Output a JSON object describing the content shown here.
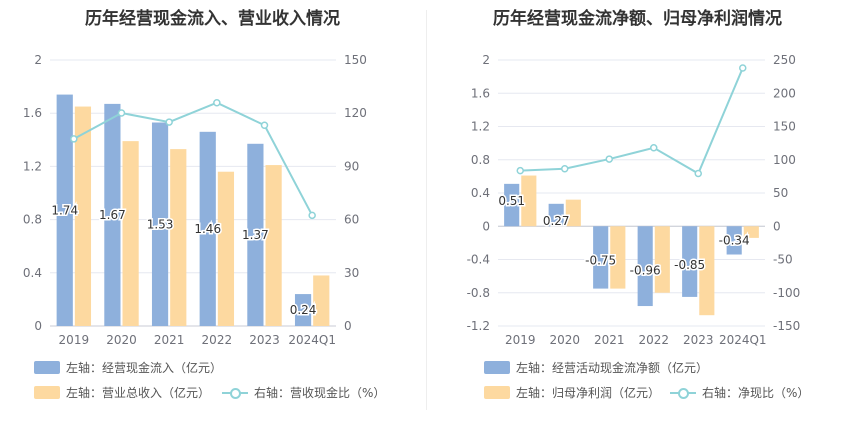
{
  "chart_data": [
    {
      "type": "bar",
      "title": "历年经营现金流入、营业收入情况",
      "categories": [
        "2019",
        "2020",
        "2021",
        "2022",
        "2023",
        "2024Q1"
      ],
      "left_axis": {
        "min": 0,
        "max": 2,
        "ticks": [
          "0",
          "0.4",
          "0.8",
          "1.2",
          "1.6",
          "2"
        ],
        "tick_values": [
          0,
          0.4,
          0.8,
          1.2,
          1.6,
          2
        ]
      },
      "right_axis": {
        "min": 0,
        "max": 150,
        "ticks": [
          "0",
          "30",
          "60",
          "90",
          "120",
          "150"
        ],
        "tick_values": [
          0,
          30,
          60,
          90,
          120,
          150
        ]
      },
      "series": [
        {
          "name": "左轴：经营现金流入（亿元）",
          "kind": "bar",
          "axis": "left",
          "color": "#8eb0dc",
          "values": [
            1.74,
            1.67,
            1.53,
            1.46,
            1.37,
            0.24
          ],
          "labels": [
            "1.74",
            "1.67",
            "1.53",
            "1.46",
            "1.37",
            "0.24"
          ]
        },
        {
          "name": "左轴：营业总收入（亿元）",
          "kind": "bar",
          "axis": "left",
          "color": "#fdd9a0",
          "values": [
            1.65,
            1.39,
            1.33,
            1.16,
            1.21,
            0.38
          ]
        },
        {
          "name": "右轴：营收现金比（%）",
          "kind": "line",
          "axis": "right",
          "color": "#8fd3d8",
          "values": [
            105.5,
            120.1,
            115.0,
            125.9,
            113.2,
            62.4
          ]
        }
      ],
      "grid": true,
      "legend_placement": "bottom-left"
    },
    {
      "type": "bar",
      "title": "历年经营现金流净额、归母净利润情况",
      "categories": [
        "2019",
        "2020",
        "2021",
        "2022",
        "2023",
        "2024Q1"
      ],
      "left_axis": {
        "min": -1.2,
        "max": 2,
        "ticks": [
          "-1.2",
          "-0.8",
          "-0.4",
          "0",
          "0.4",
          "0.8",
          "1.2",
          "1.6",
          "2"
        ],
        "tick_values": [
          -1.2,
          -0.8,
          -0.4,
          0,
          0.4,
          0.8,
          1.2,
          1.6,
          2
        ]
      },
      "right_axis": {
        "min": -150,
        "max": 250,
        "ticks": [
          "-150",
          "-100",
          "-50",
          "0",
          "50",
          "100",
          "150",
          "200",
          "250"
        ],
        "tick_values": [
          -150,
          -100,
          -50,
          0,
          50,
          100,
          150,
          200,
          250
        ]
      },
      "series": [
        {
          "name": "左轴：经营活动现金流净额（亿元）",
          "kind": "bar",
          "axis": "left",
          "color": "#8eb0dc",
          "values": [
            0.51,
            0.27,
            -0.75,
            -0.96,
            -0.85,
            -0.34
          ],
          "labels": [
            "0.51",
            "0.27",
            "-0.75",
            "-0.96",
            "-0.85",
            "-0.34"
          ]
        },
        {
          "name": "左轴：归母净利润（亿元）",
          "kind": "bar",
          "axis": "left",
          "color": "#fdd9a0",
          "values": [
            0.61,
            0.32,
            -0.75,
            -0.8,
            -1.07,
            -0.14
          ]
        },
        {
          "name": "右轴：净现比（%）",
          "kind": "line",
          "axis": "right",
          "color": "#8fd3d8",
          "values": [
            83.6,
            86.5,
            101.0,
            118.0,
            79.3,
            238.0
          ]
        }
      ],
      "grid": true,
      "legend_placement": "bottom-left"
    }
  ]
}
